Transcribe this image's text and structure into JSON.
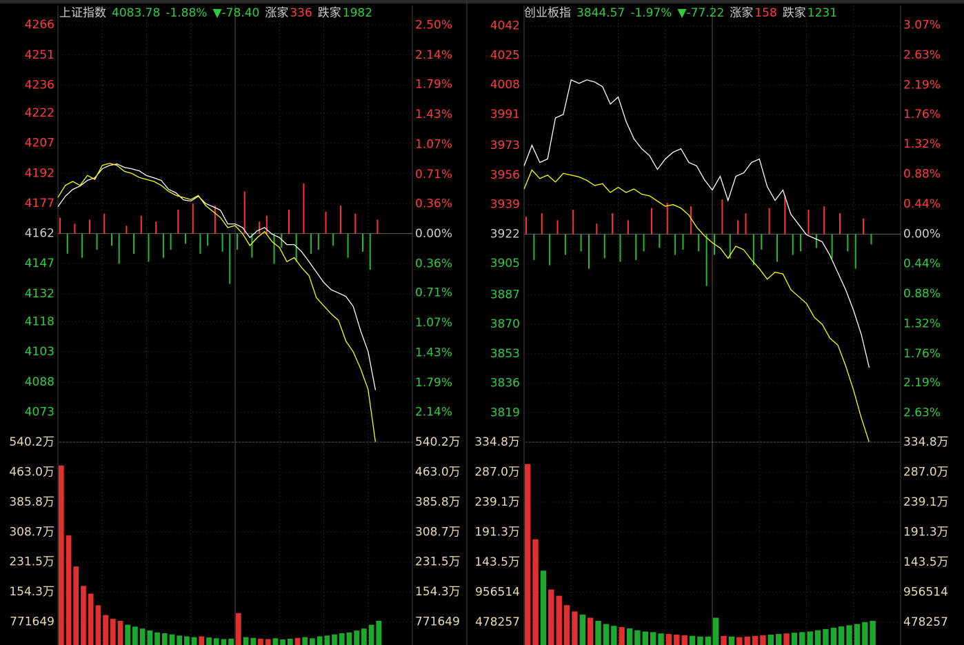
{
  "chart_data": [
    {
      "type": "line",
      "title": "上证指数",
      "last": 4083.78,
      "change_pct": "-1.88%",
      "change": "▼-78.40",
      "up_label": "涨家",
      "up_count": 336,
      "down_label": "跌家",
      "down_count": 1982,
      "ylim": [
        4058,
        4275
      ],
      "yticks": [
        4266,
        4251,
        4236,
        4222,
        4207,
        4192,
        4177,
        4162,
        4147,
        4132,
        4118,
        4103,
        4088,
        4073
      ],
      "y2lim": [
        -2.5,
        2.72
      ],
      "y2ticks": [
        {
          "value": 2.5,
          "label": "2.50%"
        },
        {
          "value": 2.14,
          "label": "2.14%"
        },
        {
          "value": 1.79,
          "label": "1.79%"
        },
        {
          "value": 1.43,
          "label": "1.43%"
        },
        {
          "value": 1.07,
          "label": "1.07%"
        },
        {
          "value": 0.71,
          "label": "0.71%"
        },
        {
          "value": 0.36,
          "label": "0.36%"
        },
        {
          "value": 0,
          "label": "0.00%"
        },
        {
          "value": -0.36,
          "label": "0.36%"
        },
        {
          "value": -0.71,
          "label": "0.71%"
        },
        {
          "value": -1.07,
          "label": "1.07%"
        },
        {
          "value": -1.43,
          "label": "1.43%"
        },
        {
          "value": -1.79,
          "label": "1.79%"
        },
        {
          "value": -2.14,
          "label": "2.14%"
        }
      ],
      "series": [
        {
          "color": "#ffffff",
          "values": [
            4175.4,
            4180.6,
            4184,
            4185.7,
            4188.5,
            4189.8,
            4194.3,
            4196,
            4196.7,
            4195,
            4194.3,
            4193.3,
            4190.9,
            4189.8,
            4188.5,
            4184,
            4182.3,
            4178.8,
            4178.2,
            4180.6,
            4177,
            4175.4,
            4173.7,
            4166.8,
            4166.8,
            4165,
            4160,
            4163.4,
            4165,
            4161.7,
            4160,
            4156.5,
            4156.5,
            4153,
            4148,
            4142.8,
            4137.6,
            4134,
            4132.4,
            4130.7,
            4125.6,
            4113.5,
            4103.2,
            4084
          ]
        },
        {
          "color": "#ffff00",
          "values": [
            4180,
            4186,
            4188,
            4186,
            4191,
            4189,
            4196,
            4197,
            4196,
            4193,
            4192,
            4190,
            4189,
            4188,
            4186,
            4183,
            4181,
            4180,
            4179,
            4181,
            4176,
            4173,
            4170,
            4165,
            4166,
            4162,
            4156,
            4160,
            4163,
            4158,
            4155,
            4148,
            4150,
            4145,
            4141,
            4130,
            4126,
            4122,
            4118.7,
            4108.4,
            4103,
            4094.6,
            4084.3,
            4058
          ]
        }
      ],
      "breadth": {
        "up_color": "#ff3333",
        "down_color": "#22bb33",
        "values": [
          8,
          -10,
          5,
          -12,
          7,
          -8,
          10,
          -6,
          -15,
          4,
          -10,
          9,
          -14,
          6,
          -12,
          -8,
          12,
          -5,
          15,
          -10,
          -6,
          14,
          -9,
          -25,
          -8,
          21,
          -12,
          6,
          9,
          -15,
          -7,
          12,
          -14,
          25,
          -10,
          -8,
          11,
          -6,
          14,
          -12,
          10,
          -9,
          -18,
          7
        ]
      },
      "volume": {
        "ylim": [
          177000,
          5402000
        ],
        "yticks": [
          {
            "value": 5402000,
            "label": "540.2万"
          },
          {
            "value": 4630000,
            "label": "463.0万"
          },
          {
            "value": 3858000,
            "label": "385.8万"
          },
          {
            "value": 3087000,
            "label": "308.7万"
          },
          {
            "value": 2315000,
            "label": "231.5万"
          },
          {
            "value": 1543000,
            "label": "154.3万"
          },
          771649
        ],
        "values": [
          4800000,
          3000000,
          2200000,
          1700000,
          1500000,
          1200000,
          950000,
          850000,
          800000,
          700000,
          650000,
          600000,
          550000,
          500000,
          480000,
          450000,
          420000,
          400000,
          380000,
          400000,
          370000,
          350000,
          330000,
          340000,
          1000000,
          380000,
          360000,
          340000,
          330000,
          350000,
          320000,
          340000,
          360000,
          380000,
          350000,
          400000,
          420000,
          450000,
          480000,
          500000,
          550000,
          600000,
          700000,
          800000
        ]
      }
    },
    {
      "type": "line",
      "title": "创业板指",
      "last": 3844.57,
      "change_pct": "-1.97%",
      "change": "▼-77.22",
      "up_label": "涨家",
      "up_count": 158,
      "down_label": "跌家",
      "down_count": 1231,
      "ylim": [
        3802,
        4053
      ],
      "yticks": [
        4042,
        4025,
        4008,
        3991,
        3973,
        3956,
        3939,
        3922,
        3905,
        3887,
        3870,
        3853,
        3836,
        3819
      ],
      "y2lim": [
        -3.06,
        3.34
      ],
      "y2ticks": [
        {
          "value": 3.07,
          "label": "3.07%"
        },
        {
          "value": 2.63,
          "label": "2.63%"
        },
        {
          "value": 2.19,
          "label": "2.19%"
        },
        {
          "value": 1.76,
          "label": "1.76%"
        },
        {
          "value": 1.32,
          "label": "1.32%"
        },
        {
          "value": 0.88,
          "label": "0.88%"
        },
        {
          "value": 0.44,
          "label": "0.44%"
        },
        {
          "value": 0,
          "label": "0.00%"
        },
        {
          "value": -0.44,
          "label": "0.44%"
        },
        {
          "value": -0.88,
          "label": "0.88%"
        },
        {
          "value": -1.32,
          "label": "1.32%"
        },
        {
          "value": -1.76,
          "label": "1.76%"
        },
        {
          "value": -2.19,
          "label": "2.19%"
        },
        {
          "value": -2.63,
          "label": "2.63%"
        }
      ],
      "series": [
        {
          "color": "#ffffff",
          "values": [
            3961.3,
            3973.2,
            3963.3,
            3965.3,
            3989,
            3991,
            4010.9,
            4008.9,
            4010.9,
            4009.7,
            4007,
            3997,
            4001,
            3987,
            3977,
            3971.2,
            3967.2,
            3959.3,
            3965.3,
            3969.2,
            3971.2,
            3963.3,
            3961.3,
            3953.3,
            3947.4,
            3955.3,
            3941.4,
            3955.3,
            3957.3,
            3963.3,
            3965.3,
            3949.4,
            3941.4,
            3947.4,
            3933.5,
            3927.6,
            3921.6,
            3919.6,
            3917.6,
            3909.7,
            3899.8,
            3889.9,
            3878,
            3864.1,
            3845
          ]
        },
        {
          "color": "#ffff00",
          "values": [
            3948,
            3959,
            3954,
            3956,
            3952,
            3957,
            3956,
            3955,
            3953,
            3950,
            3951,
            3946,
            3949,
            3946,
            3948,
            3945,
            3944,
            3941,
            3938,
            3939,
            3937,
            3933,
            3926,
            3921,
            3917,
            3914,
            3908,
            3915,
            3913,
            3907,
            3902,
            3896,
            3900,
            3899,
            3890,
            3886,
            3882,
            3874,
            3870,
            3862,
            3858,
            3846,
            3832,
            3816,
            3802
          ]
        }
      ],
      "breadth": {
        "up_color": "#ff3333",
        "down_color": "#22bb33",
        "values": [
          10,
          -15,
          12,
          -18,
          8,
          -12,
          14,
          -10,
          -20,
          6,
          -14,
          12,
          -16,
          8,
          -15,
          -10,
          15,
          -8,
          18,
          -12,
          -9,
          16,
          -10,
          -30,
          -12,
          20,
          -14,
          8,
          12,
          -18,
          -9,
          15,
          -16,
          22,
          -12,
          -10,
          14,
          -8,
          16,
          -14,
          12,
          -10,
          -20,
          9,
          -6
        ]
      },
      "volume": {
        "ylim": [
          115000,
          3348000
        ],
        "yticks": [
          {
            "value": 3348000,
            "label": "334.8万"
          },
          {
            "value": 2870000,
            "label": "287.0万"
          },
          {
            "value": 2391000,
            "label": "239.1万"
          },
          {
            "value": 1913000,
            "label": "191.3万"
          },
          {
            "value": 1435000,
            "label": "143.5万"
          },
          956514,
          478257
        ],
        "values": [
          3000000,
          1800000,
          1300000,
          1000000,
          900000,
          750000,
          650000,
          600000,
          550000,
          500000,
          450000,
          420000,
          400000,
          380000,
          350000,
          330000,
          320000,
          300000,
          290000,
          280000,
          270000,
          260000,
          250000,
          250000,
          550000,
          260000,
          250000,
          240000,
          250000,
          260000,
          270000,
          280000,
          290000,
          300000,
          310000,
          320000,
          330000,
          350000,
          370000,
          390000,
          410000,
          430000,
          450000,
          480000,
          500000
        ]
      }
    }
  ]
}
